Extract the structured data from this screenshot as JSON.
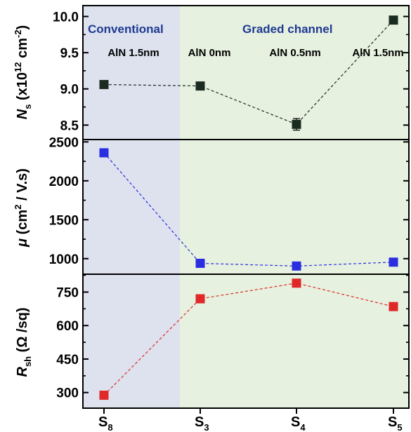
{
  "chart_data": [
    {
      "type": "scatter",
      "panel": "top",
      "ylabel": {
        "symbol": "N",
        "sub": "s",
        "rest": " (x10",
        "sup": "12",
        "rest2": " cm",
        "sup2": "-2",
        "end": ")"
      },
      "ylim": [
        8.3,
        10.15
      ],
      "yticks": [
        "8.5",
        "9.0",
        "9.5",
        "10.0"
      ],
      "categories": [
        "S8",
        "S3",
        "S4",
        "S5"
      ],
      "values": [
        9.06,
        9.04,
        8.51,
        9.95
      ],
      "error": [
        0.03,
        0.03,
        0.08,
        0.03
      ],
      "color": "#1c2b21",
      "connector": "dashed"
    },
    {
      "type": "scatter",
      "panel": "middle",
      "ylabel": {
        "symbol": "μ",
        "rest": " (cm",
        "sup": "2",
        "end": " / V.s)"
      },
      "ylim": [
        800,
        2530
      ],
      "yticks": [
        "1000",
        "1500",
        "2000",
        "2500"
      ],
      "categories": [
        "S8",
        "S3",
        "S4",
        "S5"
      ],
      "values": [
        2360,
        940,
        905,
        955
      ],
      "color": "#2a2ee0",
      "connector": "dashed"
    },
    {
      "type": "scatter",
      "panel": "bottom",
      "ylabel": {
        "symbol": "R",
        "sub": "sh",
        "rest": " (Ω /sq)"
      },
      "ylim": [
        230,
        830
      ],
      "yticks": [
        "300",
        "450",
        "600",
        "750"
      ],
      "categories": [
        "S8",
        "S3",
        "S4",
        "S5"
      ],
      "values": [
        288,
        720,
        790,
        685
      ],
      "color": "#e02828",
      "connector": "dashed"
    }
  ],
  "x_labels": [
    {
      "main": "S",
      "sub": "8"
    },
    {
      "main": "S",
      "sub": "3"
    },
    {
      "main": "S",
      "sub": "4"
    },
    {
      "main": "S",
      "sub": "5"
    }
  ],
  "bands": {
    "conventional": {
      "label": "Conventional",
      "color": "#dde2ee"
    },
    "graded": {
      "label": "Graded channel",
      "color": "#e6f1df"
    }
  },
  "annotations": [
    "AlN 1.5nm",
    "AlN 0nm",
    "AlN 0.5nm",
    "AlN 1.5nm"
  ]
}
